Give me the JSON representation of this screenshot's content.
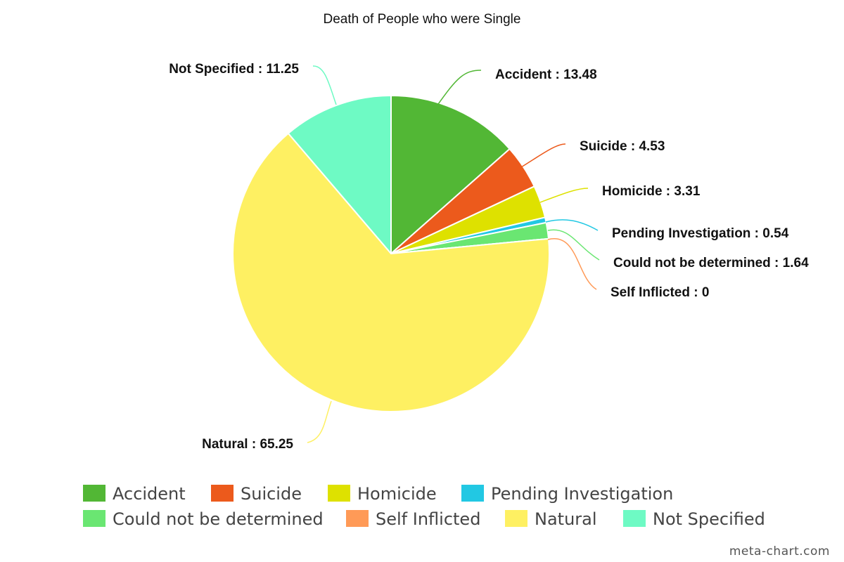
{
  "chart_data": {
    "type": "pie",
    "title": "Death of People who were Single",
    "label_separator": " : ",
    "slices": [
      {
        "label": "Accident",
        "value": 13.48,
        "color": "#52b735"
      },
      {
        "label": "Suicide",
        "value": 4.53,
        "color": "#ec5a1c"
      },
      {
        "label": "Homicide",
        "value": 3.31,
        "color": "#dee100"
      },
      {
        "label": "Pending Investigation",
        "value": 0.54,
        "color": "#22c8e3"
      },
      {
        "label": "Could not be determined",
        "value": 1.64,
        "color": "#6ae672"
      },
      {
        "label": "Self Inflicted",
        "value": 0,
        "color": "#ff9a57"
      },
      {
        "label": "Natural",
        "value": 65.25,
        "color": "#fef062"
      },
      {
        "label": "Not Specified",
        "value": 11.25,
        "color": "#6efac4"
      }
    ],
    "legend": {
      "placement": "bottom",
      "rows": [
        [
          "Accident",
          "Suicide",
          "Homicide",
          "Pending Investigation"
        ],
        [
          "Could not be determined",
          "Self Inflicted",
          "Natural",
          "Not Specified"
        ]
      ]
    }
  },
  "credit": "meta-chart.com"
}
